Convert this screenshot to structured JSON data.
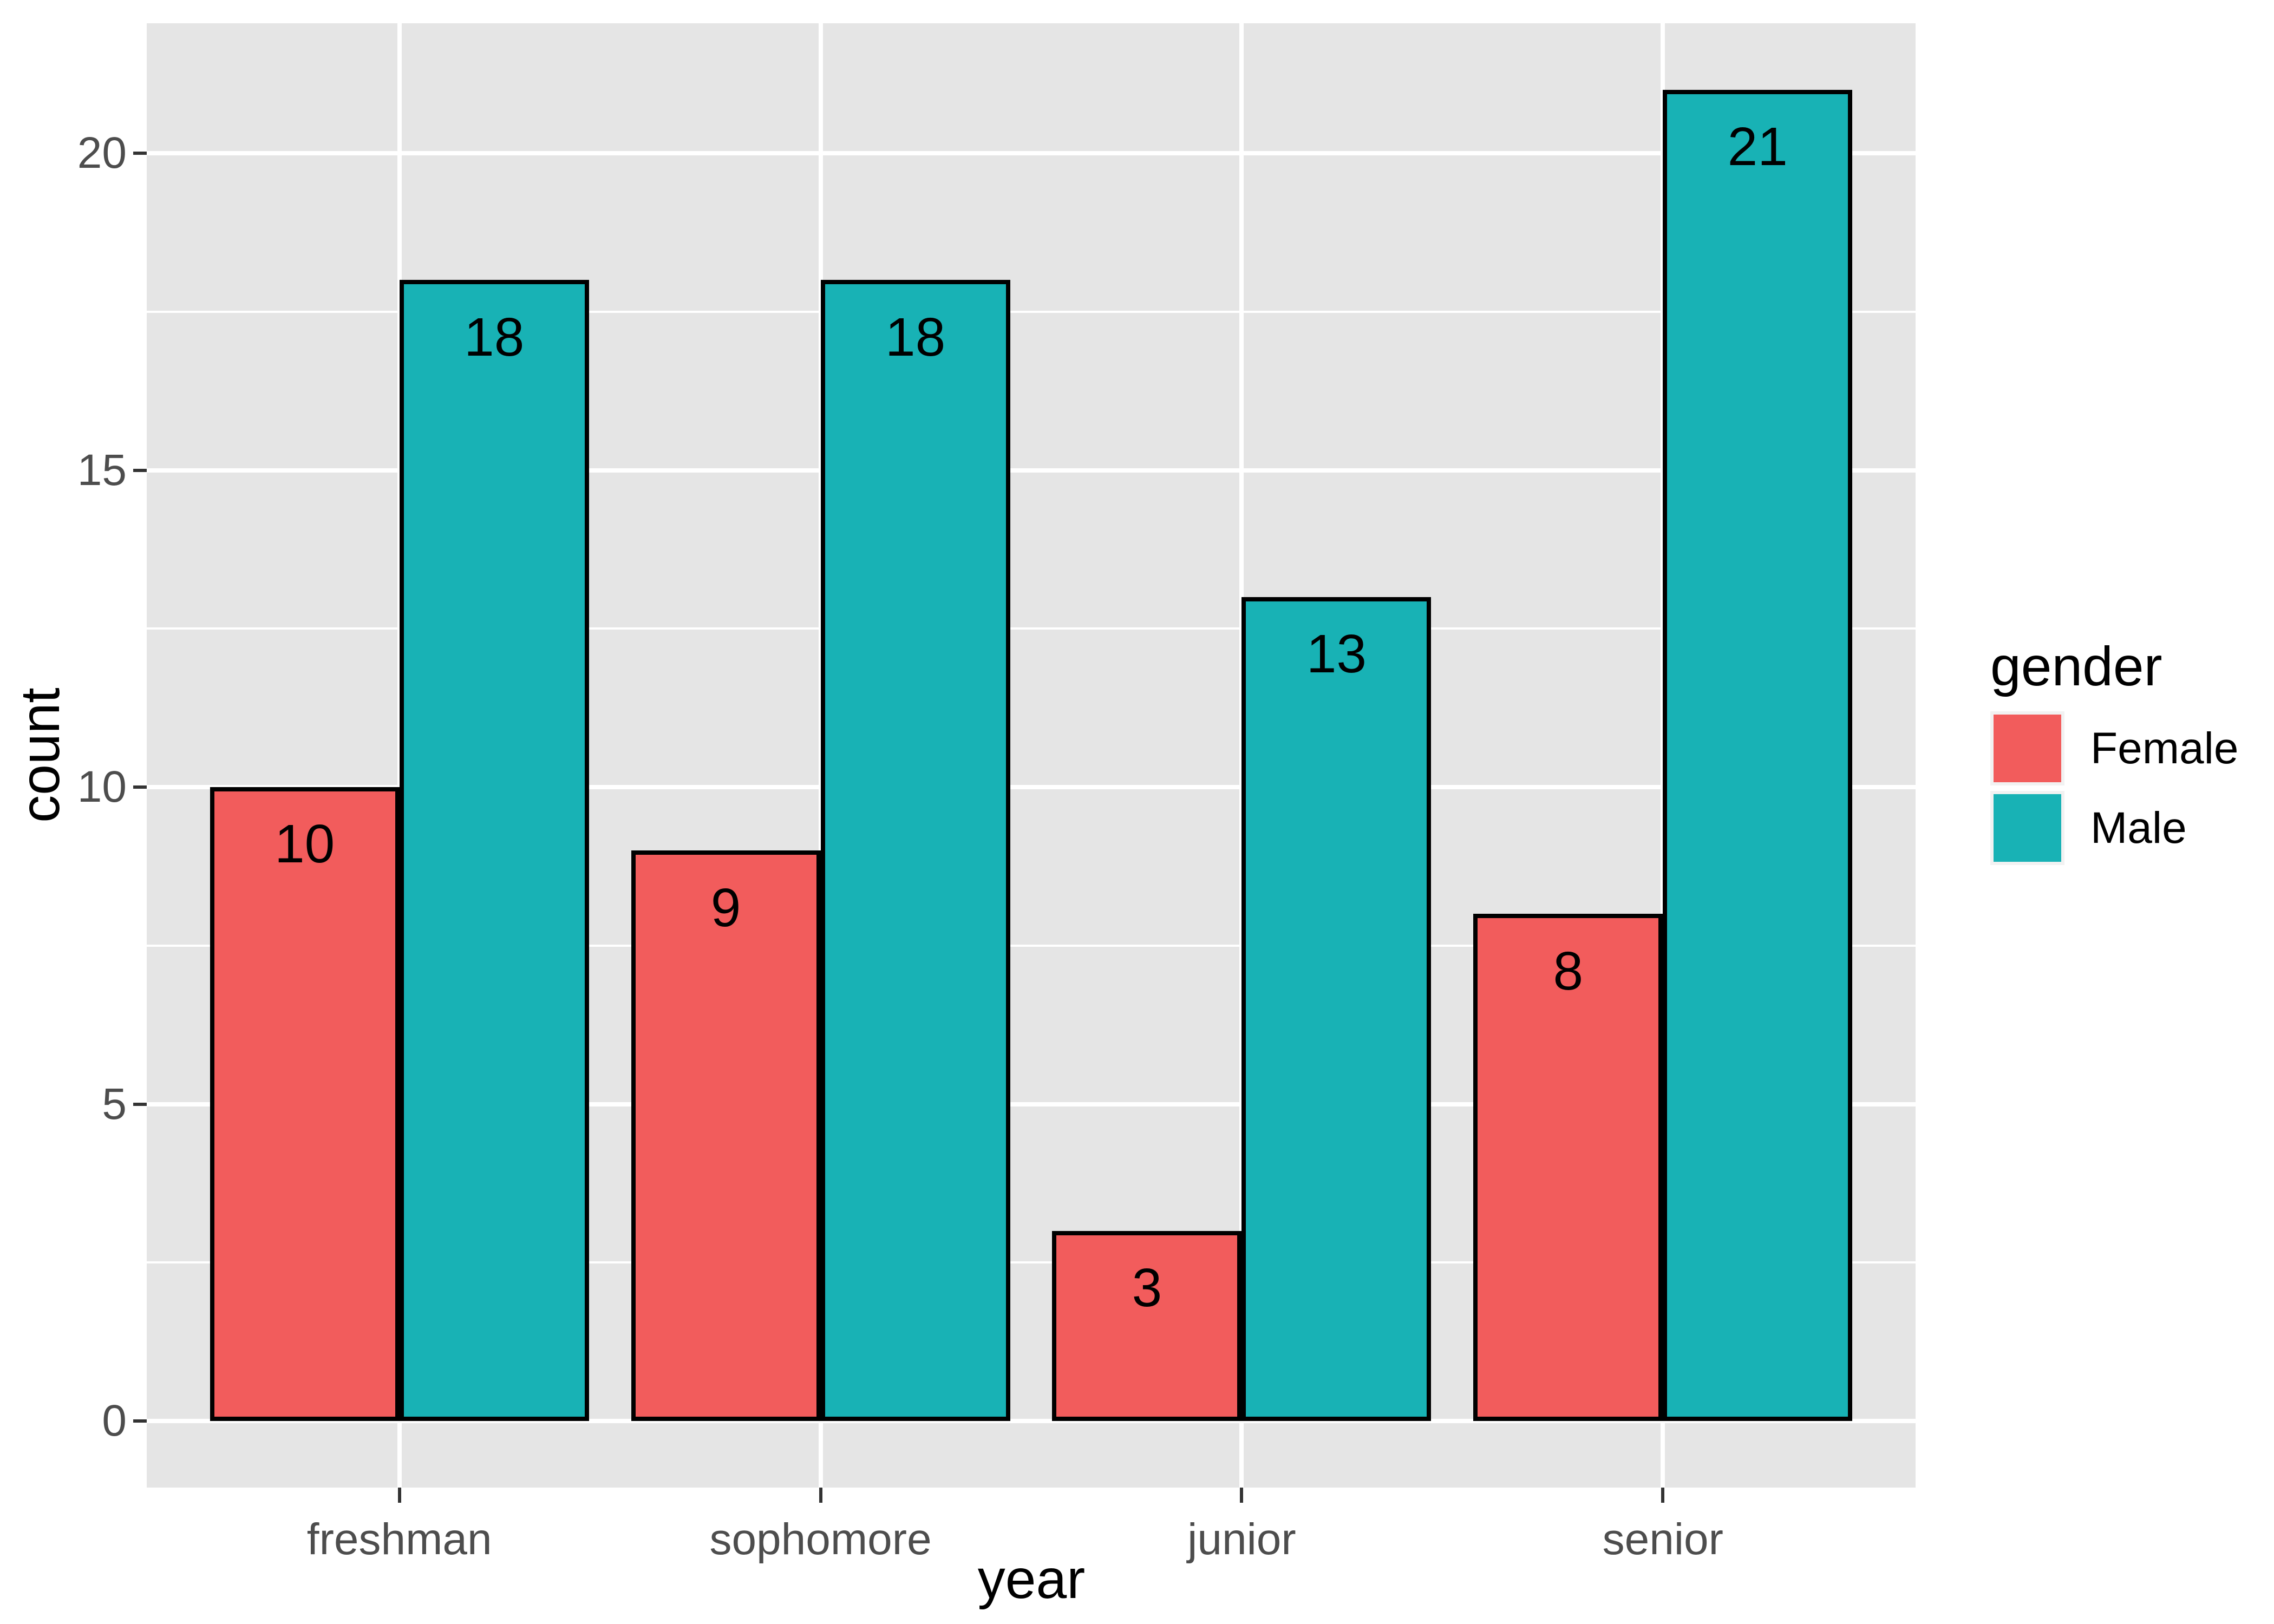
{
  "chart_data": {
    "type": "bar",
    "subtype": "grouped-dodged",
    "title": "",
    "categories": [
      "freshman",
      "sophomore",
      "junior",
      "senior"
    ],
    "series": [
      {
        "name": "Female",
        "color": "#F25C5C",
        "values": [
          10,
          9,
          3,
          8
        ]
      },
      {
        "name": "Male",
        "color": "#18B2B5",
        "values": [
          18,
          18,
          13,
          21
        ]
      }
    ],
    "bar_value_labels": {
      "Female": [
        "10",
        "9",
        "3",
        "8"
      ],
      "Male": [
        "18",
        "18",
        "13",
        "21"
      ]
    },
    "xlabel": "year",
    "ylabel": "count",
    "y_ticks": [
      "0",
      "5",
      "10",
      "15",
      "20"
    ],
    "y_tick_values": [
      0,
      5,
      10,
      15,
      20
    ],
    "y_minor_tick_values": [
      2.5,
      7.5,
      12.5,
      17.5
    ],
    "ylim": [
      -1.05,
      22.05
    ],
    "grid": "on",
    "legend": {
      "title": "gender",
      "position": "right",
      "entries": [
        "Female",
        "Male"
      ]
    }
  },
  "colors": {
    "panel_background": "#E5E5E5",
    "gridline": "#FFFFFF",
    "bar_outline": "#000000",
    "axis_text": "#4D4D4D",
    "axis_title": "#000000",
    "tick_mark": "#333333",
    "legend_key_background": "#F2F2F2",
    "figure_background": "#FFFFFF"
  }
}
